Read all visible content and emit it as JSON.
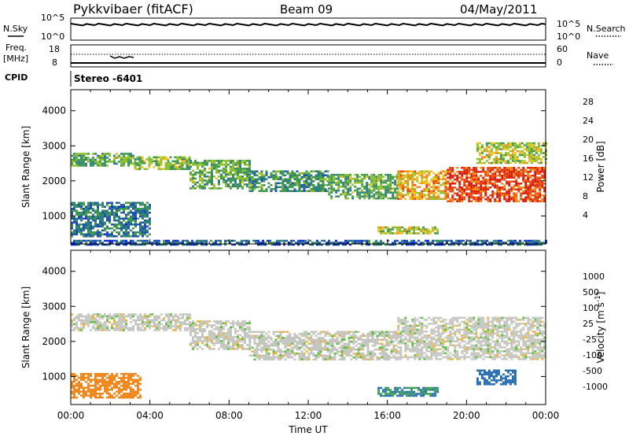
{
  "header": {
    "station": "Pykkvibaer (fitACF)",
    "beam": "Beam 09",
    "date": "04/May/2011"
  },
  "nsky_panel": {
    "left_label": "N.Sky",
    "right_label": "N.Search",
    "left_ticks": [
      "10^5",
      "10^0"
    ],
    "right_ticks": [
      "10^5",
      "10^0"
    ]
  },
  "freq_panel": {
    "left_label_line1": "Freq.",
    "left_label_line2": "[MHz]",
    "right_label": "Nave",
    "left_ticks": [
      "18",
      "8"
    ],
    "right_ticks": [
      "60",
      "0"
    ],
    "cpid_label": "CPID",
    "cpid_value": "Stereo -6401"
  },
  "colors": {
    "power": [
      "#0a2ad6",
      "#1f4fb8",
      "#2f7f7a",
      "#3f9a4a",
      "#8cbf2a",
      "#e8c21e",
      "#f08a14",
      "#e84a10",
      "#d81e10"
    ],
    "velocity": [
      "#1530c8",
      "#2a6fb0",
      "#3a9a5a",
      "#59c23a",
      "#c6c6c0",
      "#e8b53a",
      "#f0861a",
      "#e85010",
      "#e01010"
    ]
  },
  "chart_data": [
    {
      "type": "heatmap",
      "name": "power",
      "ylabel": "Slant Range [km]",
      "xlim": [
        0,
        24
      ],
      "ylim": [
        200,
        4600
      ],
      "yticks": [
        "1000",
        "2000",
        "3000",
        "4000"
      ],
      "xticks": [
        "00:00",
        "04:00",
        "08:00",
        "12:00",
        "16:00",
        "20:00",
        "00:00"
      ],
      "colorbar": {
        "label": "Power [dB]",
        "ticks": [
          "4",
          "8",
          "12",
          "16",
          "20",
          "24",
          "28"
        ],
        "range": [
          0,
          30
        ]
      },
      "bands": [
        {
          "t0": 0.0,
          "t1": 3.2,
          "r0": 2450,
          "r1": 2800,
          "v": 12
        },
        {
          "t0": 3.2,
          "t1": 6.0,
          "r0": 2350,
          "r1": 2700,
          "v": 14
        },
        {
          "t0": 6.0,
          "t1": 9.0,
          "r0": 1800,
          "r1": 2600,
          "v": 12
        },
        {
          "t0": 9.0,
          "t1": 13.0,
          "r0": 1700,
          "r1": 2300,
          "v": 10
        },
        {
          "t0": 13.0,
          "t1": 16.5,
          "r0": 1500,
          "r1": 2200,
          "v": 12
        },
        {
          "t0": 16.5,
          "t1": 19.0,
          "r0": 1500,
          "r1": 2300,
          "v": 20
        },
        {
          "t0": 19.0,
          "t1": 24.0,
          "r0": 1400,
          "r1": 2400,
          "v": 26
        },
        {
          "t0": 20.5,
          "t1": 24.0,
          "r0": 2500,
          "r1": 3100,
          "v": 16
        },
        {
          "t0": 0.0,
          "t1": 4.0,
          "r0": 400,
          "r1": 1400,
          "v": 8
        },
        {
          "t0": 15.5,
          "t1": 18.5,
          "r0": 500,
          "r1": 700,
          "v": 16
        },
        {
          "t0": 0.0,
          "t1": 24.0,
          "r0": 200,
          "r1": 320,
          "v": 6
        }
      ]
    },
    {
      "type": "heatmap",
      "name": "velocity",
      "ylabel": "Slant Range [km]",
      "xlabel": "Time UT",
      "xlim": [
        0,
        24
      ],
      "ylim": [
        200,
        4600
      ],
      "yticks": [
        "1000",
        "2000",
        "3000",
        "4000"
      ],
      "xticks": [
        "00:00",
        "04:00",
        "08:00",
        "12:00",
        "16:00",
        "20:00",
        "00:00"
      ],
      "colorbar": {
        "label": "Velocity [m s^-1]",
        "ticks": [
          "1000",
          "500",
          "100",
          "25",
          "-25",
          "-100",
          "-500",
          "-1000"
        ]
      },
      "bands": [
        {
          "t0": 0.0,
          "t1": 6.0,
          "r0": 2350,
          "r1": 2800,
          "v": 0
        },
        {
          "t0": 6.0,
          "t1": 9.0,
          "r0": 1800,
          "r1": 2600,
          "v": 0
        },
        {
          "t0": 9.0,
          "t1": 16.5,
          "r0": 1500,
          "r1": 2300,
          "v": 0
        },
        {
          "t0": 16.5,
          "t1": 24.0,
          "r0": 1500,
          "r1": 2700,
          "v": 0
        },
        {
          "t0": 0.0,
          "t1": 3.5,
          "r0": 400,
          "r1": 1100,
          "v": -150
        },
        {
          "t0": 15.5,
          "t1": 18.5,
          "r0": 450,
          "r1": 700,
          "v": 300
        },
        {
          "t0": 20.5,
          "t1": 22.5,
          "r0": 800,
          "r1": 1200,
          "v": 700
        }
      ]
    }
  ]
}
